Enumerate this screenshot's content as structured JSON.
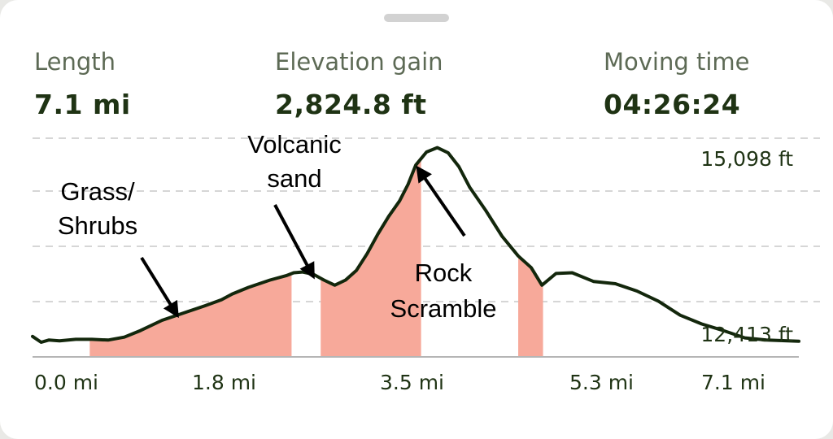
{
  "stats": {
    "length": {
      "label": "Length",
      "value": "7.1 mi"
    },
    "elevation_gain": {
      "label": "Elevation gain",
      "value": "2,824.8 ft"
    },
    "moving_time": {
      "label": "Moving time",
      "value": "04:26:24"
    }
  },
  "colors": {
    "line": "#13270c",
    "highlight": "#f7a99a",
    "grid": "#c9c9c9",
    "text": "#1f3314"
  },
  "chart_data": {
    "type": "area",
    "x_unit": "mi",
    "y_unit": "ft",
    "xlim": [
      0,
      7.1
    ],
    "ylim": [
      12200,
      15300
    ],
    "grid": true,
    "x_ticks": [
      "0.0 mi",
      "1.8 mi",
      "3.5 mi",
      "5.3 mi",
      "7.1 mi"
    ],
    "y_labels": {
      "max": "15,098 ft",
      "min": "12,413 ft"
    },
    "profile": {
      "x": [
        0.0,
        0.08,
        0.15,
        0.25,
        0.4,
        0.55,
        0.7,
        0.85,
        1.0,
        1.2,
        1.4,
        1.6,
        1.75,
        1.85,
        2.0,
        2.2,
        2.35,
        2.42,
        2.5,
        2.6,
        2.7,
        2.8,
        2.9,
        3.0,
        3.1,
        3.2,
        3.3,
        3.4,
        3.48,
        3.55,
        3.65,
        3.75,
        3.85,
        3.95,
        4.05,
        4.2,
        4.35,
        4.5,
        4.62,
        4.72,
        4.85,
        5.0,
        5.2,
        5.4,
        5.6,
        5.8,
        6.0,
        6.2,
        6.4,
        6.6,
        6.8,
        7.1
      ],
      "y": [
        12480,
        12400,
        12430,
        12420,
        12440,
        12440,
        12430,
        12470,
        12560,
        12700,
        12800,
        12900,
        12980,
        13060,
        13150,
        13250,
        13310,
        13350,
        13360,
        13330,
        13250,
        13180,
        13250,
        13380,
        13610,
        13880,
        14120,
        14330,
        14560,
        14820,
        15000,
        15060,
        14990,
        14800,
        14520,
        14200,
        13850,
        13580,
        13420,
        13180,
        13340,
        13350,
        13230,
        13200,
        13100,
        12960,
        12770,
        12650,
        12560,
        12460,
        12430,
        12413
      ]
    },
    "highlighted_ranges": [
      [
        0.53,
        2.4
      ],
      [
        2.67,
        3.6
      ],
      [
        4.5,
        4.73
      ]
    ],
    "annotations": [
      {
        "lines": [
          "Grass/",
          "Shrubs"
        ],
        "points_to": [
          1.34,
          12770
        ]
      },
      {
        "lines": [
          "Volcanic",
          "sand"
        ],
        "points_to": [
          2.6,
          13300
        ]
      },
      {
        "lines": [
          "Rock",
          "Scramble"
        ],
        "points_to": [
          3.57,
          14780
        ]
      }
    ]
  }
}
